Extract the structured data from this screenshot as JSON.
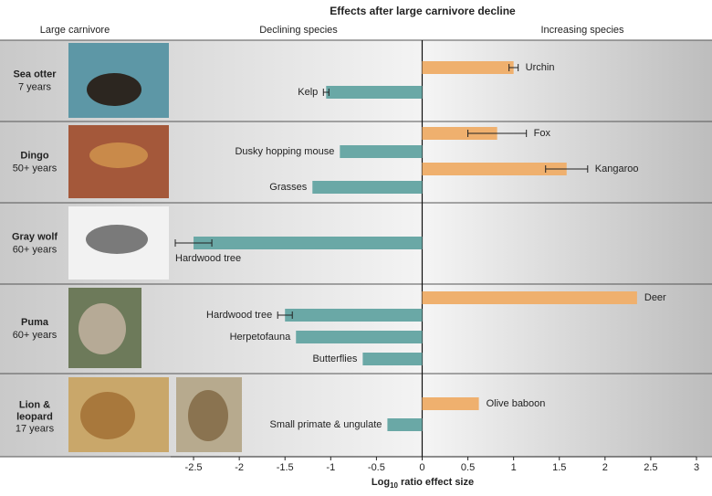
{
  "chart_data": {
    "type": "bar",
    "title": "Effects after large carnivore decline",
    "carnivore_header": "Large carnivore",
    "xlabel": {
      "text": "Log",
      "sub": "10",
      "rest": " ratio effect size"
    },
    "xlim": [
      -2.75,
      3
    ],
    "xticks": [
      -2.5,
      -2,
      -1.5,
      -1,
      -0.5,
      0,
      0.5,
      1,
      1.5,
      2,
      2.5,
      3
    ],
    "series": [
      {
        "name": "Declining species",
        "color": "#6aa8a6"
      },
      {
        "name": "Increasing species",
        "color": "#efb06e"
      }
    ],
    "groups": [
      {
        "carnivore": "Sea otter",
        "duration": "7 years",
        "bars": [
          {
            "label": "Urchin",
            "value": 1.0,
            "error": 0.05
          },
          {
            "label": "Kelp",
            "value": -1.05,
            "error": 0.03
          }
        ]
      },
      {
        "carnivore": "Dingo",
        "duration": "50+ years",
        "bars": [
          {
            "label": "Fox",
            "value": 0.82,
            "error": 0.32
          },
          {
            "label": "Dusky hopping mouse",
            "value": -0.9
          },
          {
            "label": "Kangaroo",
            "value": 1.58,
            "error": 0.23
          },
          {
            "label": "Grasses",
            "value": -1.2
          }
        ]
      },
      {
        "carnivore": "Gray wolf",
        "duration": "60+ years",
        "bars": [
          {
            "label": "Hardwood tree",
            "value": -2.5,
            "error": 0.2
          }
        ]
      },
      {
        "carnivore": "Puma",
        "duration": "60+ years",
        "bars": [
          {
            "label": "Deer",
            "value": 2.35
          },
          {
            "label": "Hardwood tree",
            "value": -1.5,
            "error": 0.08
          },
          {
            "label": "Herpetofauna",
            "value": -1.38
          },
          {
            "label": "Butterflies",
            "value": -0.65
          }
        ]
      },
      {
        "carnivore": "Lion & leopard",
        "duration": "17 years",
        "bars": [
          {
            "label": "Olive baboon",
            "value": 0.62
          },
          {
            "label": "Small primate & ungulate",
            "value": -0.38
          }
        ]
      }
    ]
  }
}
